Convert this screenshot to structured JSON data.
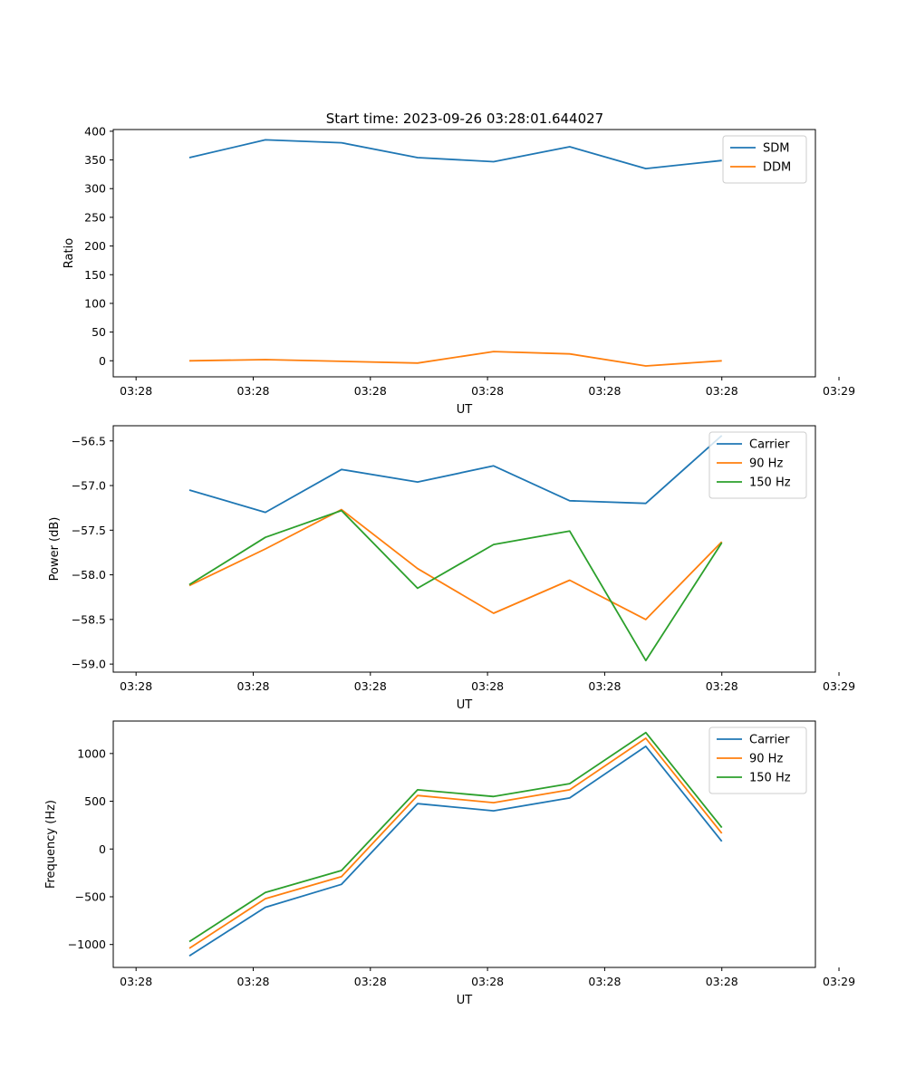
{
  "figure_title": "Start time: 2023-09-26 03:28:01.644027",
  "colors": {
    "blue": "#1f77b4",
    "orange": "#ff7f0e",
    "green": "#2ca02c",
    "axis": "#000000",
    "legend_border": "#cccccc"
  },
  "chart_data": [
    {
      "type": "line",
      "title": "Start time: 2023-09-26 03:28:01.644027",
      "xlabel": "UT",
      "ylabel": "Ratio",
      "xlim": [
        0,
        9.23
      ],
      "ylim": [
        -28,
        403
      ],
      "xticks": [
        0.3,
        1.84,
        3.38,
        4.92,
        6.46,
        8.0,
        9.54
      ],
      "xtick_labels": [
        "03:28",
        "03:28",
        "03:28",
        "03:28",
        "03:28",
        "03:28",
        "03:29"
      ],
      "yticks": [
        0,
        50,
        100,
        150,
        200,
        250,
        300,
        350,
        400
      ],
      "ytick_labels": [
        "0",
        "50",
        "100",
        "150",
        "200",
        "250",
        "300",
        "350",
        "400"
      ],
      "legend_location": "top-right",
      "x": [
        1,
        2,
        3,
        4,
        5,
        6,
        7,
        8
      ],
      "series": [
        {
          "name": "SDM",
          "color": "#1f77b4",
          "values": [
            354,
            385,
            380,
            354,
            347,
            373,
            335,
            349
          ]
        },
        {
          "name": "DDM",
          "color": "#ff7f0e",
          "values": [
            0,
            2,
            -1,
            -4,
            16,
            12,
            -9,
            0
          ]
        }
      ]
    },
    {
      "type": "line",
      "xlabel": "UT",
      "ylabel": "Power (dB)",
      "xlim": [
        0,
        9.23
      ],
      "ylim": [
        -59.09,
        -56.33
      ],
      "xticks": [
        0.3,
        1.84,
        3.38,
        4.92,
        6.46,
        8.0,
        9.54
      ],
      "xtick_labels": [
        "03:28",
        "03:28",
        "03:28",
        "03:28",
        "03:28",
        "03:28",
        "03:29"
      ],
      "yticks": [
        -59.0,
        -58.5,
        -58.0,
        -57.5,
        -57.0,
        -56.5
      ],
      "ytick_labels": [
        "−59.0",
        "−58.5",
        "−58.0",
        "−57.5",
        "−57.0",
        "−56.5"
      ],
      "legend_location": "top-right",
      "x": [
        1,
        2,
        3,
        4,
        5,
        6,
        7,
        8
      ],
      "series": [
        {
          "name": "Carrier",
          "color": "#1f77b4",
          "values": [
            -57.05,
            -57.3,
            -56.82,
            -56.96,
            -56.78,
            -57.17,
            -57.2,
            -56.44
          ]
        },
        {
          "name": "90 Hz",
          "color": "#ff7f0e",
          "values": [
            -58.12,
            -57.71,
            -57.27,
            -57.93,
            -58.43,
            -58.06,
            -58.5,
            -57.63
          ]
        },
        {
          "name": "150 Hz",
          "color": "#2ca02c",
          "values": [
            -58.11,
            -57.58,
            -57.28,
            -58.15,
            -57.66,
            -57.51,
            -58.96,
            -57.64
          ]
        }
      ]
    },
    {
      "type": "line",
      "xlabel": "UT",
      "ylabel": "Frequency (Hz)",
      "xlim": [
        0,
        9.23
      ],
      "ylim": [
        -1240,
        1340
      ],
      "xticks": [
        0.3,
        1.84,
        3.38,
        4.92,
        6.46,
        8.0,
        9.54
      ],
      "xtick_labels": [
        "03:28",
        "03:28",
        "03:28",
        "03:28",
        "03:28",
        "03:28",
        "03:29"
      ],
      "yticks": [
        -1000,
        -500,
        0,
        500,
        1000
      ],
      "ytick_labels": [
        "−1000",
        "−500",
        "0",
        "500",
        "1000"
      ],
      "legend_location": "top-right",
      "x": [
        1,
        2,
        3,
        4,
        5,
        6,
        7,
        8
      ],
      "series": [
        {
          "name": "Carrier",
          "color": "#1f77b4",
          "values": [
            -1120,
            -610,
            -370,
            475,
            400,
            535,
            1075,
            80
          ]
        },
        {
          "name": "90 Hz",
          "color": "#ff7f0e",
          "values": [
            -1040,
            -520,
            -290,
            560,
            485,
            620,
            1160,
            165
          ]
        },
        {
          "name": "150 Hz",
          "color": "#2ca02c",
          "values": [
            -970,
            -455,
            -225,
            620,
            550,
            685,
            1220,
            225
          ]
        }
      ]
    }
  ]
}
